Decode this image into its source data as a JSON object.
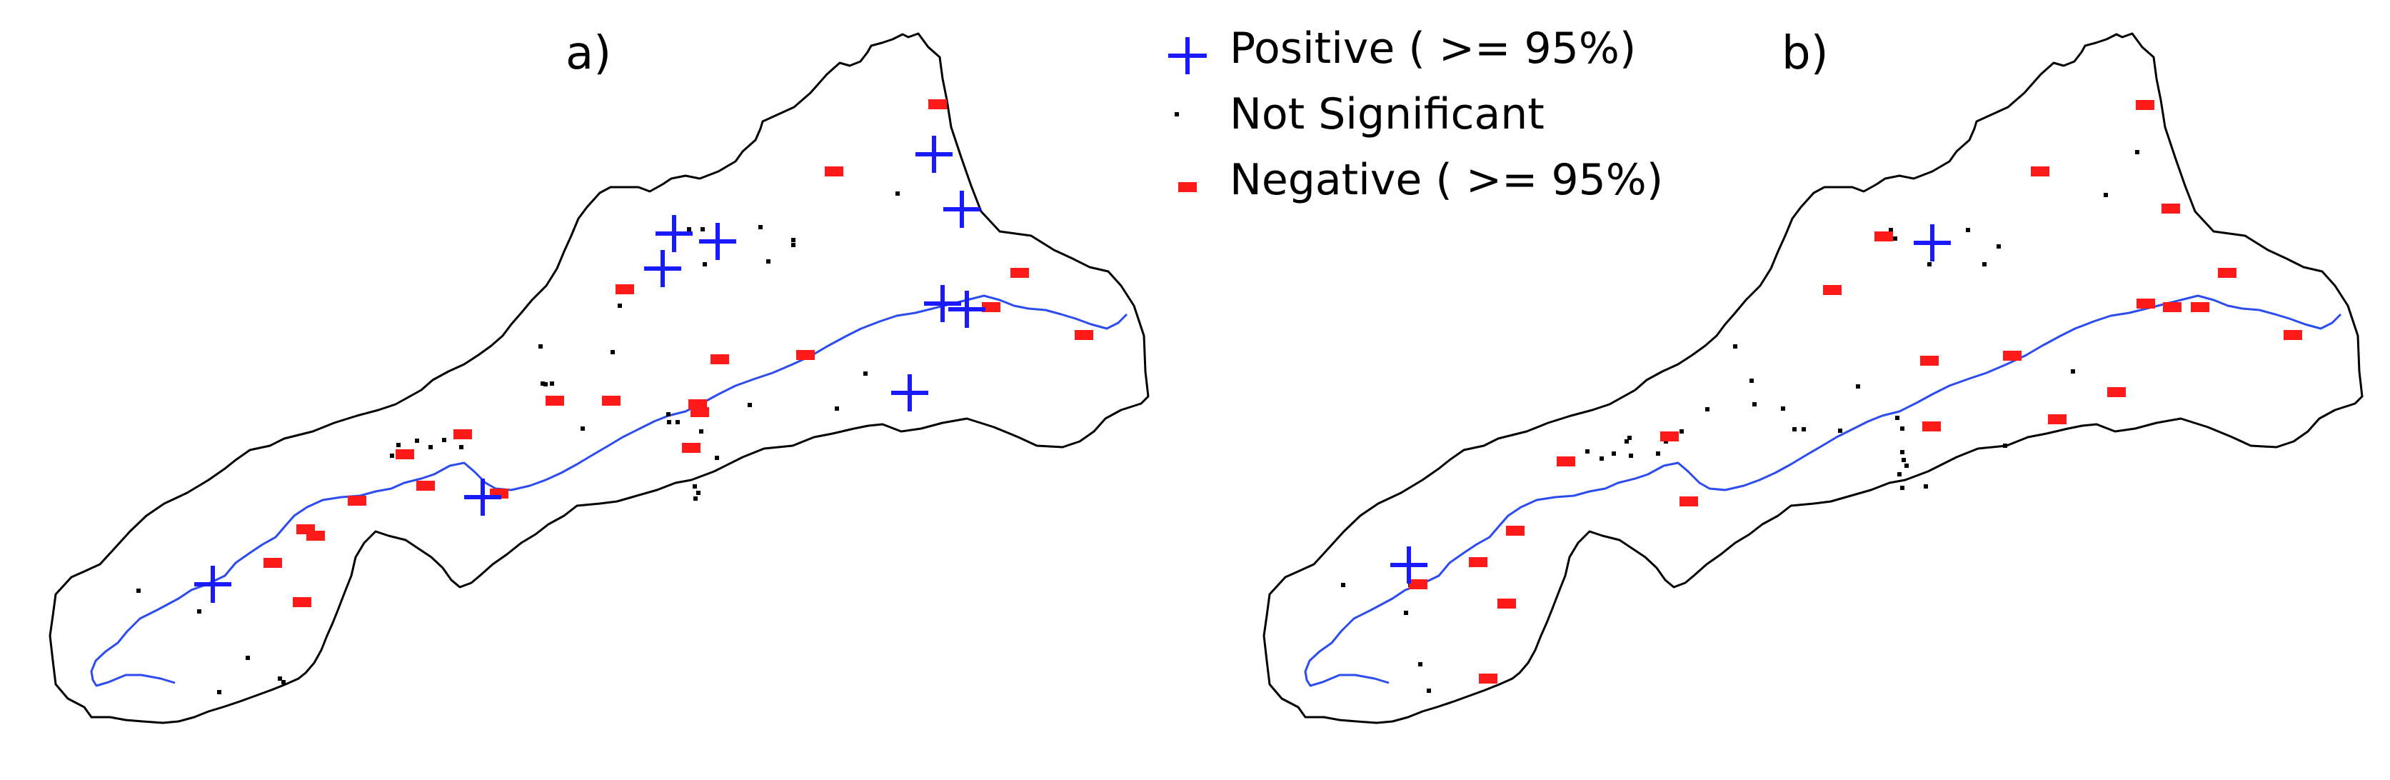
{
  "panels": [
    {
      "label": "a)",
      "positive": [
        [
          298,
          818
        ],
        [
          676,
          696
        ],
        [
          944,
          327
        ],
        [
          928,
          376
        ],
        [
          1005,
          338
        ],
        [
          1308,
          216
        ],
        [
          1347,
          293
        ],
        [
          1320,
          425
        ],
        [
          1354,
          433
        ],
        [
          1274,
          550
        ]
      ],
      "negative": [
        [
          1313,
          146
        ],
        [
          1168,
          240
        ],
        [
          875,
          405
        ],
        [
          1428,
          382
        ],
        [
          1008,
          503
        ],
        [
          1128,
          497
        ],
        [
          777,
          561
        ],
        [
          856,
          561
        ],
        [
          977,
          566
        ],
        [
          980,
          577
        ],
        [
          968,
          627
        ],
        [
          648,
          608
        ],
        [
          567,
          636
        ],
        [
          596,
          680
        ],
        [
          699,
          691
        ],
        [
          500,
          701
        ],
        [
          428,
          741
        ],
        [
          442,
          750
        ],
        [
          382,
          788
        ],
        [
          423,
          843
        ],
        [
          1388,
          430
        ],
        [
          1518,
          469
        ]
      ],
      "notsig": [
        [
          1257,
          271
        ],
        [
          1111,
          336
        ],
        [
          965,
          321
        ],
        [
          984,
          321
        ],
        [
          987,
          370
        ],
        [
          1065,
          318
        ],
        [
          1076,
          366
        ],
        [
          1111,
          343
        ],
        [
          868,
          428
        ],
        [
          757,
          485
        ],
        [
          858,
          493
        ],
        [
          760,
          537
        ],
        [
          764,
          538
        ],
        [
          773,
          537
        ],
        [
          816,
          600
        ],
        [
          936,
          580
        ],
        [
          937,
          591
        ],
        [
          949,
          591
        ],
        [
          982,
          604
        ],
        [
          1050,
          567
        ],
        [
          1172,
          572
        ],
        [
          1212,
          523
        ],
        [
          1004,
          641
        ],
        [
          973,
          681
        ],
        [
          978,
          690
        ],
        [
          974,
          698
        ],
        [
          584,
          617
        ],
        [
          603,
          626
        ],
        [
          622,
          616
        ],
        [
          646,
          626
        ],
        [
          558,
          623
        ],
        [
          570,
          636
        ],
        [
          549,
          638
        ],
        [
          194,
          827
        ],
        [
          279,
          856
        ],
        [
          347,
          921
        ],
        [
          392,
          950
        ],
        [
          307,
          969
        ],
        [
          397,
          955
        ],
        [
          587,
          680
        ]
      ]
    },
    {
      "label": "b)",
      "positive": [
        [
          1973,
          791
        ],
        [
          2706,
          340
        ]
      ],
      "negative": [
        [
          3004,
          147
        ],
        [
          2857,
          240
        ],
        [
          3040,
          292
        ],
        [
          3119,
          382
        ],
        [
          3005,
          425
        ],
        [
          3042,
          430
        ],
        [
          3081,
          430
        ],
        [
          2638,
          331
        ],
        [
          2566,
          406
        ],
        [
          2702,
          505
        ],
        [
          2818,
          498
        ],
        [
          2705,
          597
        ],
        [
          2881,
          587
        ],
        [
          2964,
          549
        ],
        [
          2338,
          611
        ],
        [
          2193,
          646
        ],
        [
          2365,
          702
        ],
        [
          2122,
          743
        ],
        [
          2070,
          787
        ],
        [
          1986,
          818
        ],
        [
          2110,
          845
        ],
        [
          2084,
          950
        ],
        [
          3211,
          469
        ]
      ],
      "notsig": [
        [
          2993,
          213
        ],
        [
          2949,
          273
        ],
        [
          2648,
          322
        ],
        [
          2654,
          334
        ],
        [
          2756,
          322
        ],
        [
          2799,
          345
        ],
        [
          2779,
          370
        ],
        [
          2702,
          370
        ],
        [
          2430,
          485
        ],
        [
          2453,
          533
        ],
        [
          2457,
          566
        ],
        [
          2391,
          573
        ],
        [
          2497,
          572
        ],
        [
          2513,
          601
        ],
        [
          2526,
          601
        ],
        [
          2577,
          603
        ],
        [
          2602,
          541
        ],
        [
          2657,
          585
        ],
        [
          2664,
          600
        ],
        [
          2664,
          633
        ],
        [
          2666,
          644
        ],
        [
          2670,
          652
        ],
        [
          2660,
          664
        ],
        [
          2664,
          683
        ],
        [
          2697,
          681
        ],
        [
          2808,
          624
        ],
        [
          2903,
          520
        ],
        [
          2355,
          604
        ],
        [
          2333,
          618
        ],
        [
          2322,
          635
        ],
        [
          2284,
          638
        ],
        [
          2260,
          635
        ],
        [
          2243,
          642
        ],
        [
          2223,
          632
        ],
        [
          2282,
          613
        ],
        [
          2278,
          618
        ],
        [
          2343,
          614
        ],
        [
          1975,
          819
        ],
        [
          1969,
          858
        ],
        [
          1989,
          930
        ],
        [
          2001,
          967
        ],
        [
          1881,
          819
        ]
      ]
    }
  ],
  "legend": {
    "positive_label": "Positive ( >= 95%)",
    "notsig_label": "Not Significant",
    "negative_label": "Negative ( >= 95%)"
  },
  "colors": {
    "positive": "#1a1aff",
    "negative": "#ff1a1a",
    "notsig": "#000000",
    "river": "#2c4cf0",
    "outline": "#000000",
    "background": "#ffffff"
  }
}
